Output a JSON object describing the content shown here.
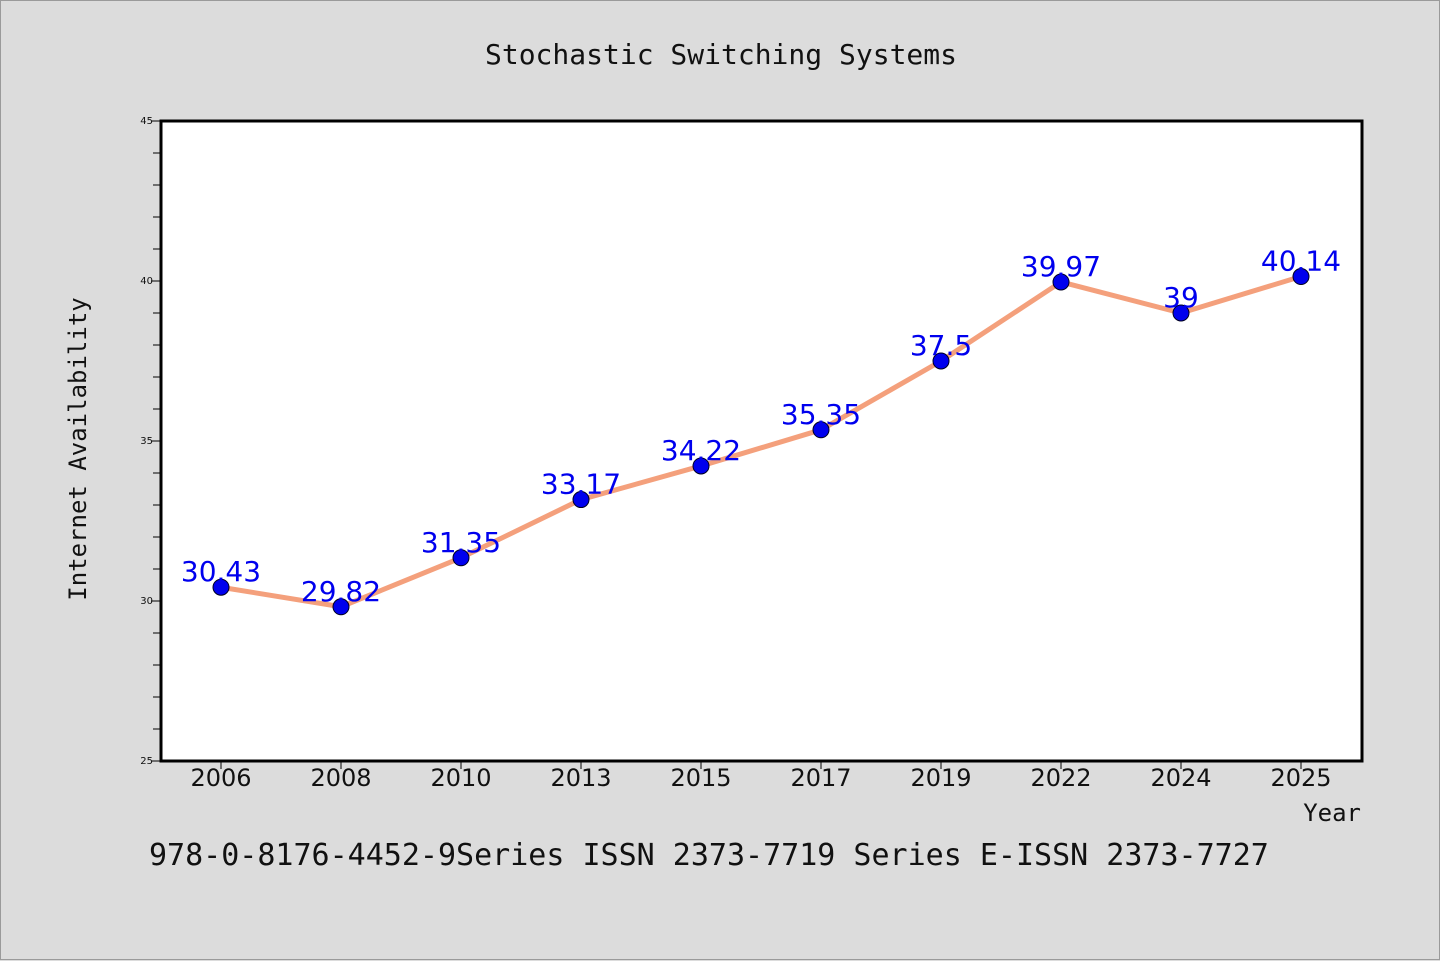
{
  "chart_data": {
    "type": "line",
    "title": "Stochastic Switching Systems",
    "xlabel": "Year",
    "ylabel": "Internet Availability",
    "categories": [
      "2006",
      "2008",
      "2010",
      "2013",
      "2015",
      "2017",
      "2019",
      "2022",
      "2024",
      "2025"
    ],
    "series": [
      {
        "values": [
          30.43,
          29.82,
          31.35,
          33.17,
          34.22,
          35.35,
          37.5,
          39.97,
          39,
          40.14
        ],
        "data_labels": [
          "30.43",
          "29.82",
          "31.35",
          "33.17",
          "34.22",
          "35.35",
          "37.5",
          "39.97",
          "39",
          "40.14"
        ],
        "line_color": "#f4a07c",
        "marker_color": "#0000ee"
      }
    ],
    "ylim": [
      25,
      45
    ],
    "yticks": [
      "25",
      "30",
      "35",
      "40",
      "45"
    ],
    "grid": false,
    "legend": "none"
  },
  "footer": {
    "text": "978-0-8176-4452-9Series ISSN 2373-7719 Series E-ISSN 2373-7727"
  },
  "colors": {
    "background": "#dcdcdc",
    "plot_background": "#ffffff",
    "label_color": "#0000ee"
  }
}
